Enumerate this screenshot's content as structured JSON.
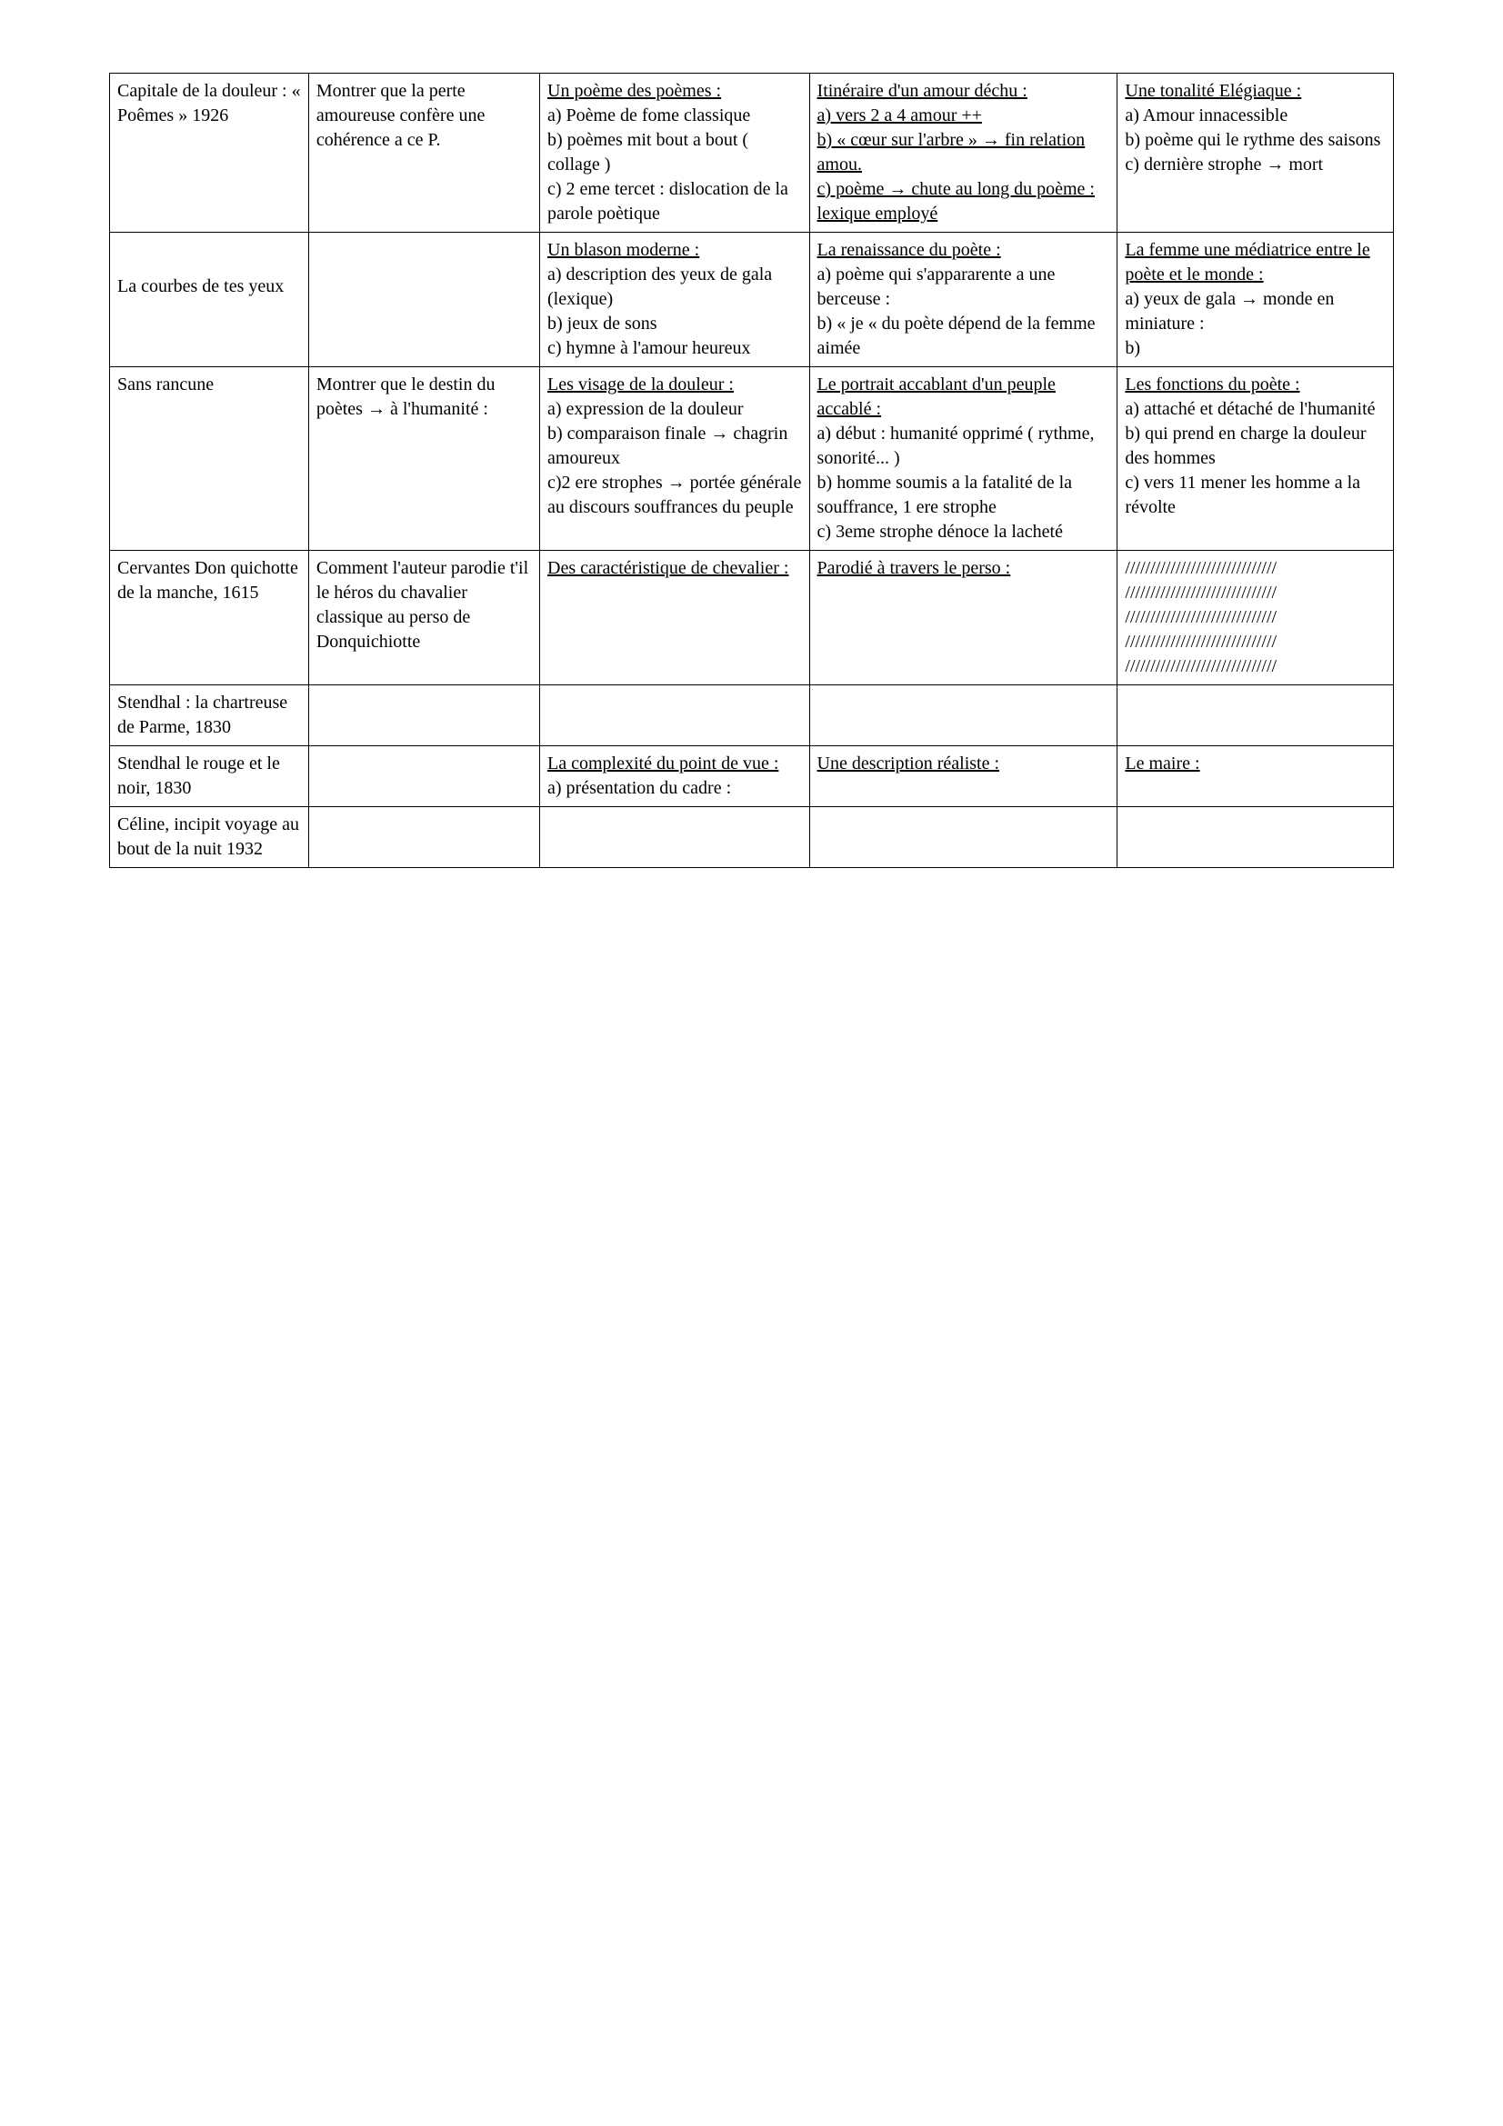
{
  "rows": [
    {
      "c1": [
        {
          "t": "Capitale de la douleur : « Poêmes » 1926",
          "u": false
        }
      ],
      "c2": [
        {
          "t": "Montrer que la perte amoureuse confère une cohérence a ce P.",
          "u": false
        }
      ],
      "c3": [
        {
          "t": "Un poème des poèmes :",
          "u": true
        },
        {
          "t": "a) Poème de fome classique",
          "u": false
        },
        {
          "t": "b) poèmes mit bout a bout ( collage )",
          "u": false
        },
        {
          "t": "c) 2 eme tercet : dislocation de la parole poètique",
          "u": false
        }
      ],
      "c4": [
        {
          "t": "Itinéraire d'un amour déchu :",
          "u": true
        },
        {
          "t": "a) vers 2 a 4 amour ++",
          "u": true
        },
        {
          "t": "b) « cœur sur l'arbre » → fin relation amou.",
          "u": true
        },
        {
          "t": "c) poème → chute au long du poème : lexique employé ",
          "u": true
        }
      ],
      "c5": [
        {
          "t": "Une tonalité Elégiaque : ",
          "u": true
        },
        {
          "t": "a) Amour innacessible",
          "u": false
        },
        {
          "t": "b) poème qui le rythme des saisons",
          "u": false
        },
        {
          "t": "c) dernière strophe → mort",
          "u": false
        }
      ]
    },
    {
      "c1": [
        {
          "t": "La courbes de tes yeux",
          "u": false,
          "cls": "pad-top pad-bot"
        }
      ],
      "c2": [],
      "c3": [
        {
          "t": "Un blason moderne :",
          "u": true
        },
        {
          "t": "a) description des yeux de gala (lexique)",
          "u": false
        },
        {
          "t": "b) jeux de sons",
          "u": false
        },
        {
          "t": "c) hymne à l'amour heureux",
          "u": false
        }
      ],
      "c4": [
        {
          "t": "La renaissance du poète :",
          "u": true
        },
        {
          "t": "a) poème qui s'appararente a une berceuse :",
          "u": false
        },
        {
          "t": "b) « je « du poète dépend de la femme aimée",
          "u": false
        }
      ],
      "c5": [
        {
          "t": "La femme  une médiatrice entre le poète et le monde :",
          "u": true
        },
        {
          "t": "a) yeux de gala → monde en miniature :",
          "u": false
        },
        {
          "t": "b)",
          "u": false
        }
      ]
    },
    {
      "c1": [
        {
          "t": "Sans rancune",
          "u": false
        }
      ],
      "c2": [
        {
          "t": "Montrer que le destin du poètes → à l'humanité :",
          "u": false
        }
      ],
      "c3": [
        {
          "t": "Les visage de la douleur :",
          "u": true
        },
        {
          "t": "a) expression de la douleur",
          "u": false
        },
        {
          "t": "b) comparaison finale → chagrin amoureux",
          "u": false
        },
        {
          "t": "c)2 ere strophes → portée générale au discours  souffrances du peuple",
          "u": false
        }
      ],
      "c4": [
        {
          "t": "Le portrait accablant d'un peuple accablé :",
          "u": true
        },
        {
          "t": "a) début : humanité opprimé ( rythme, sonorité... )",
          "u": false
        },
        {
          "t": "b) homme soumis a la fatalité de la souffrance, 1 ere strophe",
          "u": false
        },
        {
          "t": "c) 3eme strophe dénoce la lacheté",
          "u": false
        }
      ],
      "c5": [
        {
          "t": "Les fonctions du poète :",
          "u": true
        },
        {
          "t": "a) attaché et détaché de l'humanité",
          "u": false
        },
        {
          "t": "b) qui prend en charge la douleur des hommes",
          "u": false
        },
        {
          "t": "c) vers 11 mener les homme a la révolte",
          "u": false
        }
      ]
    },
    {
      "c1": [
        {
          "t": "Cervantes Don quichotte de la manche, 1615",
          "u": false
        }
      ],
      "c2": [
        {
          "t": "Comment l'auteur parodie t'il le héros du chavalier classique au perso de Donquichiotte",
          "u": false
        }
      ],
      "c3": [
        {
          "t": "Des caractéristique de chevalier :",
          "u": true
        }
      ],
      "c4": [
        {
          "t": "Parodié à travers le perso :",
          "u": true
        }
      ],
      "c5": [
        {
          "t": "//////////////////////////////",
          "u": false
        },
        {
          "t": "//////////////////////////////",
          "u": false
        },
        {
          "t": "//////////////////////////////",
          "u": false
        },
        {
          "t": "//////////////////////////////",
          "u": false
        },
        {
          "t": "//////////////////////////////",
          "u": false
        }
      ]
    },
    {
      "c1": [
        {
          "t": "Stendhal : la chartreuse de Parme, 1830",
          "u": false
        }
      ],
      "c2": [],
      "c3": [],
      "c4": [],
      "c5": []
    },
    {
      "c1": [
        {
          "t": "Stendhal le rouge et le noir, 1830",
          "u": false
        }
      ],
      "c2": [],
      "c3": [
        {
          "t": "La complexité du point de vue :",
          "u": true
        },
        {
          "t": "a) présentation du cadre :",
          "u": false
        }
      ],
      "c4": [
        {
          "t": "Une description réaliste :",
          "u": true
        }
      ],
      "c5": [
        {
          "t": "Le maire :",
          "u": true
        }
      ]
    },
    {
      "c1": [
        {
          "t": "Céline, incipit voyage au bout de la nuit 1932",
          "u": false
        }
      ],
      "c2": [],
      "c3": [],
      "c4": [],
      "c5": []
    }
  ]
}
